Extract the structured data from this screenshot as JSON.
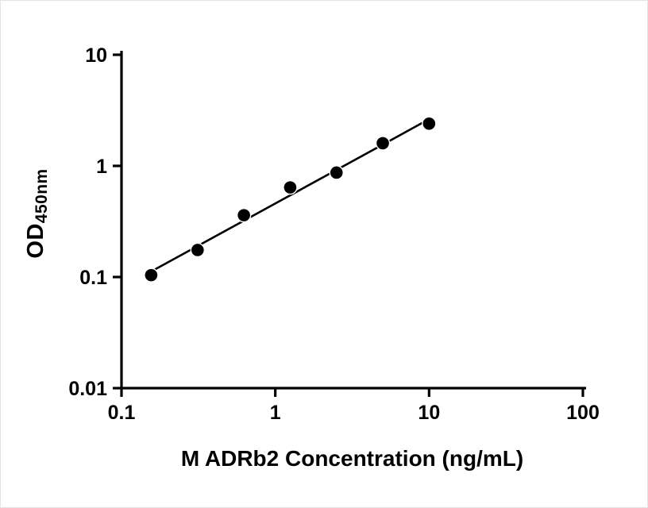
{
  "chart_data": {
    "type": "scatter",
    "title": "",
    "xlabel": "M ADRb2 Concentration (ng/mL)",
    "ylabel_main": "OD",
    "ylabel_sub": "450nm",
    "x_scale": "log",
    "y_scale": "log",
    "xlim": [
      0.1,
      100
    ],
    "ylim": [
      0.01,
      10
    ],
    "x_ticks": [
      0.1,
      1,
      10,
      100
    ],
    "x_tick_labels": [
      "0.1",
      "1",
      "10",
      "100"
    ],
    "y_ticks": [
      0.01,
      0.1,
      1,
      10
    ],
    "y_tick_labels": [
      "0.01",
      "0.1",
      "1",
      "10"
    ],
    "x": [
      0.156,
      0.3125,
      0.625,
      1.25,
      2.5,
      5,
      10
    ],
    "y": [
      0.104,
      0.175,
      0.36,
      0.64,
      0.87,
      1.6,
      2.4
    ],
    "trendline": true,
    "grid": false,
    "legend": false,
    "point_color": "#000000",
    "line_color": "#000000",
    "axis_color": "#000000",
    "background": "#ffffff"
  }
}
